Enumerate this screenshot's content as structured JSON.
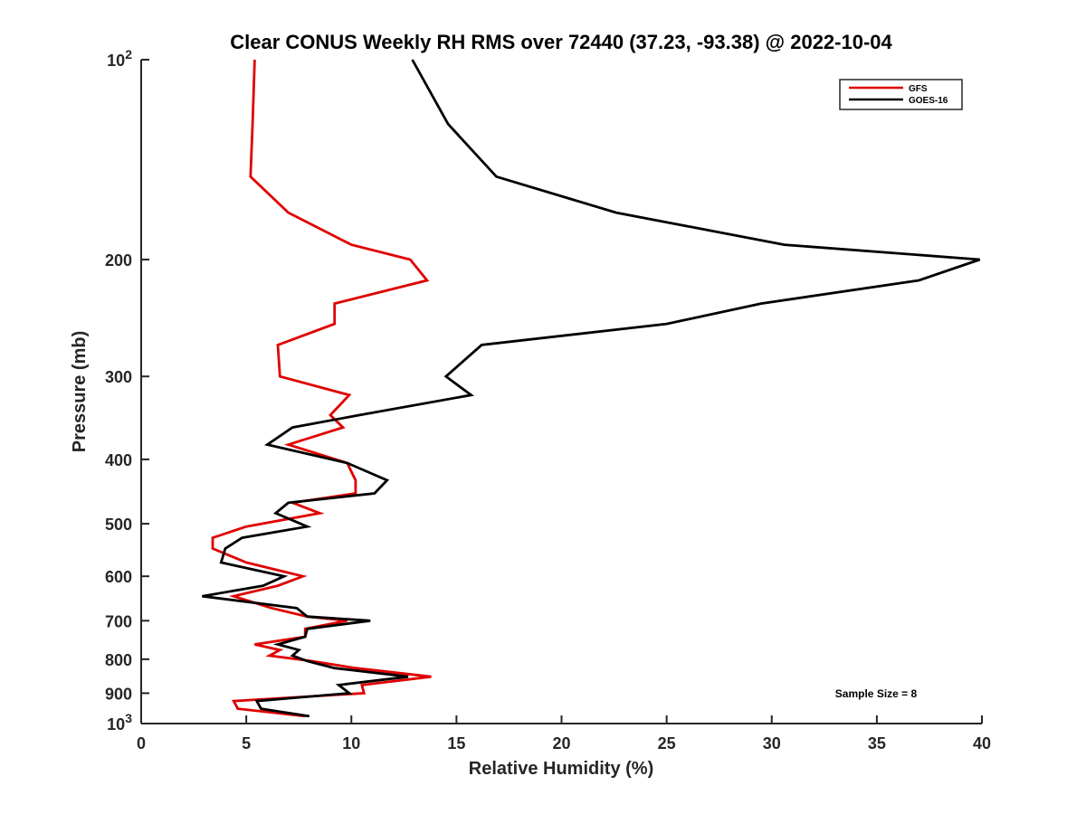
{
  "chart_data": {
    "type": "line",
    "title": "Clear CONUS Weekly RH RMS over 72440 (37.23, -93.38) @ 2022-10-04",
    "xlabel": "Relative Humidity (%)",
    "ylabel": "Pressure (mb)",
    "xlim": [
      0,
      40
    ],
    "ylim": [
      100,
      1000
    ],
    "yscale": "log",
    "y_reversed": true,
    "grid": false,
    "legend_position": "top-right",
    "x_ticks": [
      0,
      5,
      10,
      15,
      20,
      25,
      30,
      35,
      40
    ],
    "x_tick_labels": [
      "0",
      "5",
      "10",
      "15",
      "20",
      "25",
      "30",
      "35",
      "40"
    ],
    "y_ticks": [
      100,
      200,
      300,
      400,
      500,
      600,
      700,
      800,
      900,
      1000
    ],
    "y_tick_labels": [
      "10²",
      "200",
      "300",
      "400",
      "500",
      "600",
      "700",
      "800",
      "900",
      "10³"
    ],
    "annotation": "Sample Size = 8",
    "series": [
      {
        "name": "GFS",
        "color": "#e00000",
        "points": [
          [
            5.4,
            100
          ],
          [
            5.3,
            125
          ],
          [
            5.2,
            150
          ],
          [
            7.0,
            170
          ],
          [
            10.0,
            190
          ],
          [
            12.8,
            200
          ],
          [
            13.6,
            215
          ],
          [
            9.2,
            233
          ],
          [
            9.2,
            250
          ],
          [
            6.5,
            269
          ],
          [
            6.6,
            300
          ],
          [
            9.9,
            320
          ],
          [
            9.0,
            343
          ],
          [
            9.6,
            358
          ],
          [
            7.0,
            380
          ],
          [
            9.8,
            405
          ],
          [
            10.2,
            430
          ],
          [
            10.2,
            450
          ],
          [
            7.2,
            465
          ],
          [
            8.5,
            482
          ],
          [
            5.0,
            505
          ],
          [
            3.4,
            525
          ],
          [
            3.4,
            545
          ],
          [
            5.0,
            572
          ],
          [
            7.7,
            600
          ],
          [
            6.5,
            620
          ],
          [
            4.4,
            643
          ],
          [
            6.2,
            670
          ],
          [
            7.9,
            690
          ],
          [
            9.8,
            700
          ],
          [
            7.8,
            720
          ],
          [
            7.8,
            740
          ],
          [
            5.4,
            760
          ],
          [
            6.6,
            775
          ],
          [
            6.1,
            790
          ],
          [
            8.1,
            805
          ],
          [
            10.2,
            825
          ],
          [
            13.8,
            850
          ],
          [
            10.5,
            875
          ],
          [
            10.6,
            900
          ],
          [
            4.4,
            925
          ],
          [
            4.6,
            950
          ],
          [
            7.8,
            975
          ]
        ]
      },
      {
        "name": "GOES-16",
        "color": "#000000",
        "points": [
          [
            12.9,
            100
          ],
          [
            14.6,
            125
          ],
          [
            16.9,
            150
          ],
          [
            22.6,
            170
          ],
          [
            30.6,
            190
          ],
          [
            39.9,
            200
          ],
          [
            37.0,
            215
          ],
          [
            29.5,
            233
          ],
          [
            25.0,
            250
          ],
          [
            16.2,
            269
          ],
          [
            14.5,
            300
          ],
          [
            15.7,
            320
          ],
          [
            10.4,
            343
          ],
          [
            7.2,
            358
          ],
          [
            6.0,
            380
          ],
          [
            9.8,
            405
          ],
          [
            11.7,
            430
          ],
          [
            11.1,
            450
          ],
          [
            7.0,
            465
          ],
          [
            6.4,
            482
          ],
          [
            7.9,
            505
          ],
          [
            4.8,
            525
          ],
          [
            4.0,
            545
          ],
          [
            3.8,
            572
          ],
          [
            6.8,
            600
          ],
          [
            5.8,
            620
          ],
          [
            2.9,
            643
          ],
          [
            7.4,
            670
          ],
          [
            7.9,
            690
          ],
          [
            10.9,
            700
          ],
          [
            7.9,
            720
          ],
          [
            7.8,
            740
          ],
          [
            6.5,
            760
          ],
          [
            7.5,
            775
          ],
          [
            7.2,
            790
          ],
          [
            7.9,
            805
          ],
          [
            9.2,
            825
          ],
          [
            12.7,
            850
          ],
          [
            9.4,
            875
          ],
          [
            9.9,
            900
          ],
          [
            5.5,
            925
          ],
          [
            5.7,
            950
          ],
          [
            8.0,
            975
          ]
        ]
      }
    ]
  }
}
